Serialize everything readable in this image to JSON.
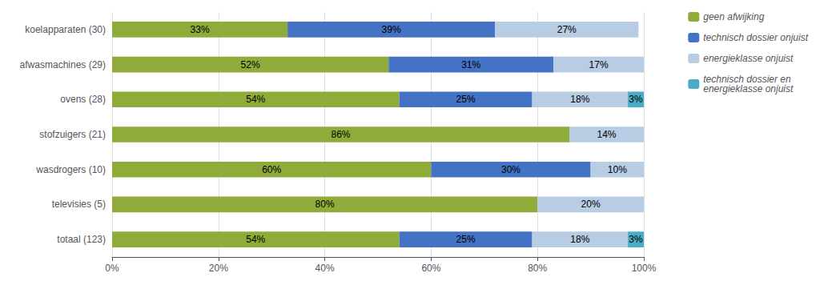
{
  "chart_data": {
    "type": "bar",
    "orientation": "horizontal",
    "stacked": true,
    "data_labels": true,
    "grid": true,
    "legend": "right",
    "categories": [
      "koelapparaten (30)",
      "afwasmachines (29)",
      "ovens (28)",
      "stofzuigers (21)",
      "wasdrogers (10)",
      "televisies (5)",
      "totaal (123)"
    ],
    "series": [
      {
        "name": "geen afwijking",
        "color": "#8fac3a",
        "values": [
          33,
          52,
          54,
          86,
          60,
          80,
          54
        ],
        "value_labels": [
          "33%",
          "52%",
          "54%",
          "86%",
          "60%",
          "80%",
          "54%"
        ]
      },
      {
        "name": "technisch dossier onjuist",
        "color": "#4472c4",
        "values": [
          39,
          31,
          25,
          0,
          30,
          0,
          25
        ],
        "value_labels": [
          "39%",
          "31%",
          "25%",
          null,
          "30%",
          null,
          "25%"
        ]
      },
      {
        "name": "energieklasse onjuist",
        "color": "#b8cce4",
        "values": [
          27,
          17,
          18,
          14,
          10,
          20,
          18
        ],
        "value_labels": [
          "27%",
          "17%",
          "18%",
          "14%",
          "10%",
          "20%",
          "18%"
        ]
      },
      {
        "name": "technisch dossier en\nenergieklasse onjuist",
        "color": "#4bacc6",
        "values": [
          0,
          0,
          3,
          0,
          0,
          0,
          3
        ],
        "value_labels": [
          null,
          null,
          "3%",
          null,
          null,
          null,
          "3%"
        ]
      }
    ],
    "xlim": [
      0,
      100
    ],
    "xticks": [
      {
        "value": 0,
        "label": "0%"
      },
      {
        "value": 20,
        "label": "20%"
      },
      {
        "value": 40,
        "label": "40%"
      },
      {
        "value": 60,
        "label": "60%"
      },
      {
        "value": 80,
        "label": "80%"
      },
      {
        "value": 100,
        "label": "100%"
      }
    ]
  }
}
